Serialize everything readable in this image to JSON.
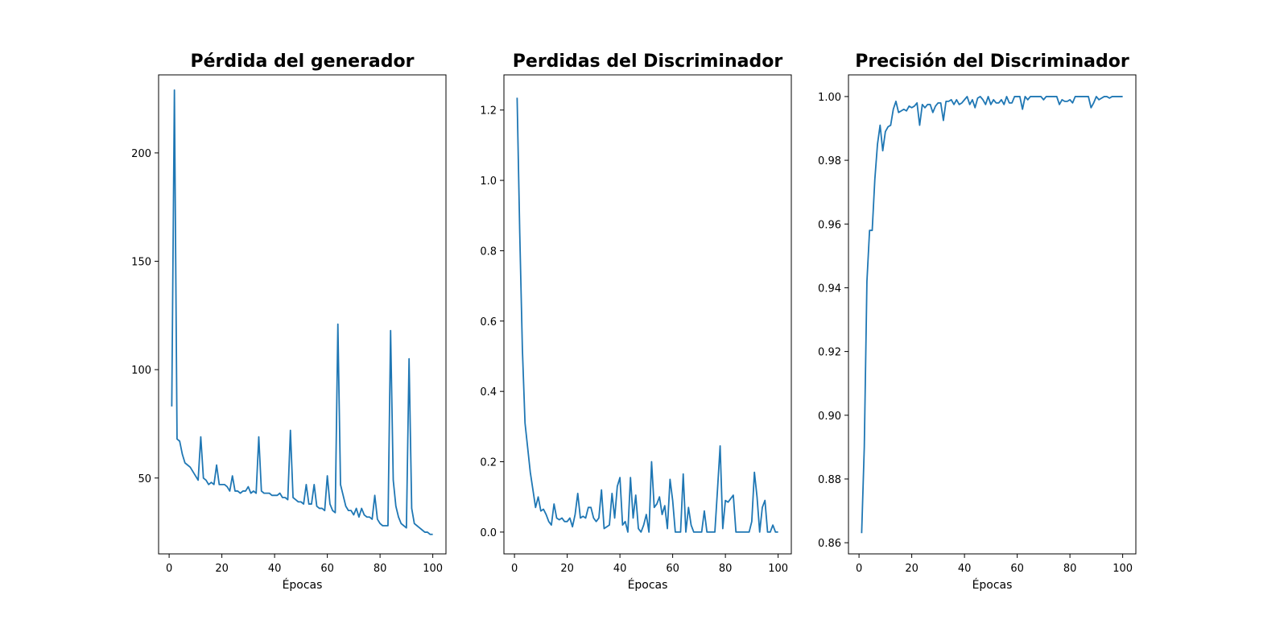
{
  "chart_data": [
    {
      "type": "line",
      "title": "Pérdida del generador",
      "xlabel": "Épocas",
      "ylabel": "",
      "xlim": [
        -4,
        105
      ],
      "ylim": [
        15,
        236
      ],
      "xticks": [
        0,
        20,
        40,
        60,
        80,
        100
      ],
      "yticks": [
        50,
        100,
        150,
        200
      ],
      "grid": false,
      "color": "#1f77b4",
      "series": [
        {
          "x": [
            1,
            2,
            3,
            4,
            5,
            6,
            7,
            8,
            9,
            10,
            11,
            12,
            13,
            14,
            15,
            16,
            17,
            18,
            19,
            20,
            21,
            22,
            23,
            24,
            25,
            26,
            27,
            28,
            29,
            30,
            31,
            32,
            33,
            34,
            35,
            36,
            37,
            38,
            39,
            40,
            41,
            42,
            43,
            44,
            45,
            46,
            47,
            48,
            49,
            50,
            51,
            52,
            53,
            54,
            55,
            56,
            57,
            58,
            59,
            60,
            61,
            62,
            63,
            64,
            65,
            66,
            67,
            68,
            69,
            70,
            71,
            72,
            73,
            74,
            75,
            76,
            77,
            78,
            79,
            80,
            81,
            82,
            83,
            84,
            85,
            86,
            87,
            88,
            89,
            90,
            91,
            92,
            93,
            94,
            95,
            96,
            97,
            98,
            99,
            100
          ],
          "y": [
            83,
            229,
            68,
            67,
            61,
            57,
            56,
            55,
            53,
            51,
            49,
            69,
            50,
            49,
            47,
            48,
            47,
            56,
            47,
            47,
            47,
            46,
            44,
            51,
            44,
            44,
            43,
            44,
            44,
            46,
            43,
            44,
            43,
            69,
            44,
            43,
            43,
            43,
            42,
            42,
            42,
            43,
            41,
            41,
            40,
            72,
            41,
            40,
            39,
            39,
            38,
            47,
            38,
            38,
            47,
            37,
            36,
            36,
            35,
            51,
            38,
            35,
            34,
            121,
            47,
            42,
            37,
            35,
            35,
            33,
            36,
            32,
            36,
            33,
            32,
            32,
            31,
            42,
            31,
            29,
            28,
            28,
            28,
            118,
            49,
            37,
            32,
            29,
            28,
            27,
            105,
            36,
            29,
            28,
            27,
            26,
            25,
            25,
            24,
            24
          ]
        }
      ]
    },
    {
      "type": "line",
      "title": "Perdidas del Discriminador",
      "xlabel": "Épocas",
      "ylabel": "",
      "xlim": [
        -4,
        105
      ],
      "ylim": [
        -0.062,
        1.3
      ],
      "xticks": [
        0,
        20,
        40,
        60,
        80,
        100
      ],
      "yticks": [
        0.0,
        0.2,
        0.4,
        0.6,
        0.8,
        1.0,
        1.2
      ],
      "grid": false,
      "color": "#1f77b4",
      "series": [
        {
          "x": [
            1,
            2,
            3,
            4,
            5,
            6,
            7,
            8,
            9,
            10,
            11,
            12,
            13,
            14,
            15,
            16,
            17,
            18,
            19,
            20,
            21,
            22,
            23,
            24,
            25,
            26,
            27,
            28,
            29,
            30,
            31,
            32,
            33,
            34,
            35,
            36,
            37,
            38,
            39,
            40,
            41,
            42,
            43,
            44,
            45,
            46,
            47,
            48,
            49,
            50,
            51,
            52,
            53,
            54,
            55,
            56,
            57,
            58,
            59,
            60,
            61,
            62,
            63,
            64,
            65,
            66,
            67,
            68,
            69,
            70,
            71,
            72,
            73,
            74,
            75,
            76,
            77,
            78,
            79,
            80,
            81,
            82,
            83,
            84,
            85,
            86,
            87,
            88,
            89,
            90,
            91,
            92,
            93,
            94,
            95,
            96,
            97,
            98,
            99,
            100
          ],
          "y": [
            1.235,
            0.85,
            0.52,
            0.31,
            0.24,
            0.17,
            0.12,
            0.07,
            0.1,
            0.06,
            0.065,
            0.05,
            0.03,
            0.02,
            0.08,
            0.04,
            0.035,
            0.04,
            0.03,
            0.03,
            0.04,
            0.015,
            0.05,
            0.11,
            0.04,
            0.045,
            0.04,
            0.07,
            0.07,
            0.04,
            0.03,
            0.04,
            0.12,
            0.01,
            0.015,
            0.02,
            0.11,
            0.04,
            0.13,
            0.155,
            0.02,
            0.03,
            0.0,
            0.155,
            0.04,
            0.105,
            0.01,
            0.0,
            0.02,
            0.05,
            0.0,
            0.2,
            0.07,
            0.08,
            0.1,
            0.05,
            0.075,
            0.01,
            0.15,
            0.09,
            0.0,
            0.0,
            0.0,
            0.165,
            0.0,
            0.07,
            0.02,
            0.0,
            0.0,
            0.0,
            0.0,
            0.06,
            0.0,
            0.0,
            0.0,
            0.0,
            0.12,
            0.245,
            0.01,
            0.09,
            0.085,
            0.095,
            0.105,
            0.0,
            0.0,
            0.0,
            0.0,
            0.0,
            0.0,
            0.03,
            0.17,
            0.1,
            0.0,
            0.07,
            0.09,
            0.0,
            0.0,
            0.02,
            0.0,
            0.0
          ]
        }
      ]
    },
    {
      "type": "line",
      "title": "Precisión del Discriminador",
      "xlabel": "Épocas",
      "ylabel": "",
      "xlim": [
        -4,
        105
      ],
      "ylim": [
        0.8565,
        1.0068
      ],
      "xticks": [
        0,
        20,
        40,
        60,
        80,
        100
      ],
      "yticks": [
        0.86,
        0.88,
        0.9,
        0.92,
        0.94,
        0.96,
        0.98,
        1.0
      ],
      "grid": false,
      "color": "#1f77b4",
      "series": [
        {
          "x": [
            1,
            2,
            3,
            4,
            5,
            6,
            7,
            8,
            9,
            10,
            11,
            12,
            13,
            14,
            15,
            16,
            17,
            18,
            19,
            20,
            21,
            22,
            23,
            24,
            25,
            26,
            27,
            28,
            29,
            30,
            31,
            32,
            33,
            34,
            35,
            36,
            37,
            38,
            39,
            40,
            41,
            42,
            43,
            44,
            45,
            46,
            47,
            48,
            49,
            50,
            51,
            52,
            53,
            54,
            55,
            56,
            57,
            58,
            59,
            60,
            61,
            62,
            63,
            64,
            65,
            66,
            67,
            68,
            69,
            70,
            71,
            72,
            73,
            74,
            75,
            76,
            77,
            78,
            79,
            80,
            81,
            82,
            83,
            84,
            85,
            86,
            87,
            88,
            89,
            90,
            91,
            92,
            93,
            94,
            95,
            96,
            97,
            98,
            99,
            100
          ],
          "y": [
            0.863,
            0.89,
            0.942,
            0.958,
            0.958,
            0.974,
            0.985,
            0.991,
            0.983,
            0.989,
            0.9905,
            0.991,
            0.996,
            0.9985,
            0.995,
            0.9955,
            0.996,
            0.9955,
            0.997,
            0.9965,
            0.997,
            0.998,
            0.991,
            0.9975,
            0.9965,
            0.9975,
            0.9975,
            0.995,
            0.997,
            0.998,
            0.998,
            0.9925,
            0.9985,
            0.9985,
            0.999,
            0.9975,
            0.999,
            0.9975,
            0.998,
            0.999,
            1.0,
            0.9975,
            0.999,
            0.9965,
            0.9995,
            1.0,
            0.999,
            0.9975,
            1.0,
            0.9975,
            0.999,
            0.998,
            0.998,
            0.999,
            0.9975,
            1.0,
            0.998,
            0.998,
            1.0,
            1.0,
            1.0,
            0.996,
            1.0,
            0.999,
            1.0,
            1.0,
            1.0,
            1.0,
            1.0,
            0.999,
            1.0,
            1.0,
            1.0,
            1.0,
            1.0,
            0.9975,
            0.999,
            0.9985,
            0.9985,
            0.999,
            0.998,
            1.0,
            1.0,
            1.0,
            1.0,
            1.0,
            1.0,
            0.9965,
            0.998,
            1.0,
            0.999,
            0.9995,
            1.0,
            1.0,
            0.9995,
            1.0,
            1.0,
            1.0,
            1.0,
            1.0
          ]
        }
      ]
    }
  ]
}
